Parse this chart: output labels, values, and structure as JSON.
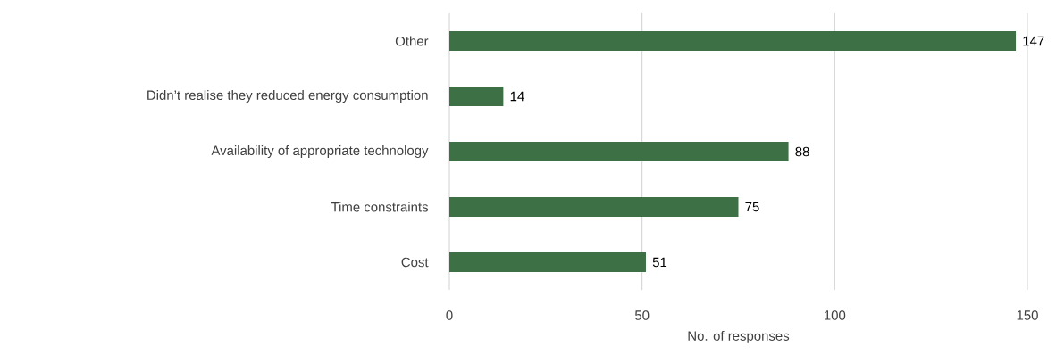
{
  "chart_data": {
    "type": "bar",
    "orientation": "horizontal",
    "xlabel": "No. of responses",
    "categories": [
      "Other",
      "Didn’t realise they reduced energy consumption",
      "Availability of appropriate technology",
      "Time constraints",
      "Cost"
    ],
    "values": [
      147,
      14,
      88,
      75,
      51
    ],
    "color": "#3d7145",
    "xlim": [
      0,
      150
    ],
    "xticks": [
      0,
      50,
      100,
      150
    ],
    "grid": "x",
    "data_labels": true
  }
}
